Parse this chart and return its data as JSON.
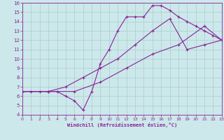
{
  "xlabel": "Windchill (Refroidissement éolien,°C)",
  "bg_color": "#cce8ea",
  "grid_color": "#aacccc",
  "line_color": "#882299",
  "xlim": [
    0,
    23
  ],
  "ylim": [
    4,
    16
  ],
  "xticks": [
    0,
    1,
    2,
    3,
    4,
    5,
    6,
    7,
    8,
    9,
    10,
    11,
    12,
    13,
    14,
    15,
    16,
    17,
    18,
    19,
    20,
    21,
    22,
    23
  ],
  "yticks": [
    4,
    5,
    6,
    7,
    8,
    9,
    10,
    11,
    12,
    13,
    14,
    15,
    16
  ],
  "line1_x": [
    0,
    1,
    2,
    3,
    4,
    5,
    6,
    7,
    8,
    9,
    10,
    11,
    12,
    13,
    14,
    15,
    16,
    17,
    18,
    19,
    20,
    21,
    22,
    23
  ],
  "line1_y": [
    6.5,
    6.5,
    6.5,
    6.5,
    6.5,
    6.0,
    5.5,
    4.5,
    6.5,
    9.5,
    11.0,
    13.0,
    14.5,
    14.5,
    14.5,
    15.7,
    15.7,
    15.2,
    14.5,
    14.0,
    13.5,
    13.0,
    12.5,
    12.0
  ],
  "line2_x": [
    0,
    3,
    5,
    7,
    9,
    11,
    13,
    15,
    17,
    19,
    21,
    23
  ],
  "line2_y": [
    6.5,
    6.5,
    7.0,
    8.0,
    9.0,
    10.0,
    11.5,
    13.0,
    14.3,
    11.0,
    11.5,
    12.0
  ],
  "line3_x": [
    0,
    3,
    6,
    9,
    12,
    15,
    18,
    21,
    23
  ],
  "line3_y": [
    6.5,
    6.5,
    6.5,
    7.5,
    9.0,
    10.5,
    11.5,
    13.5,
    12.0
  ]
}
